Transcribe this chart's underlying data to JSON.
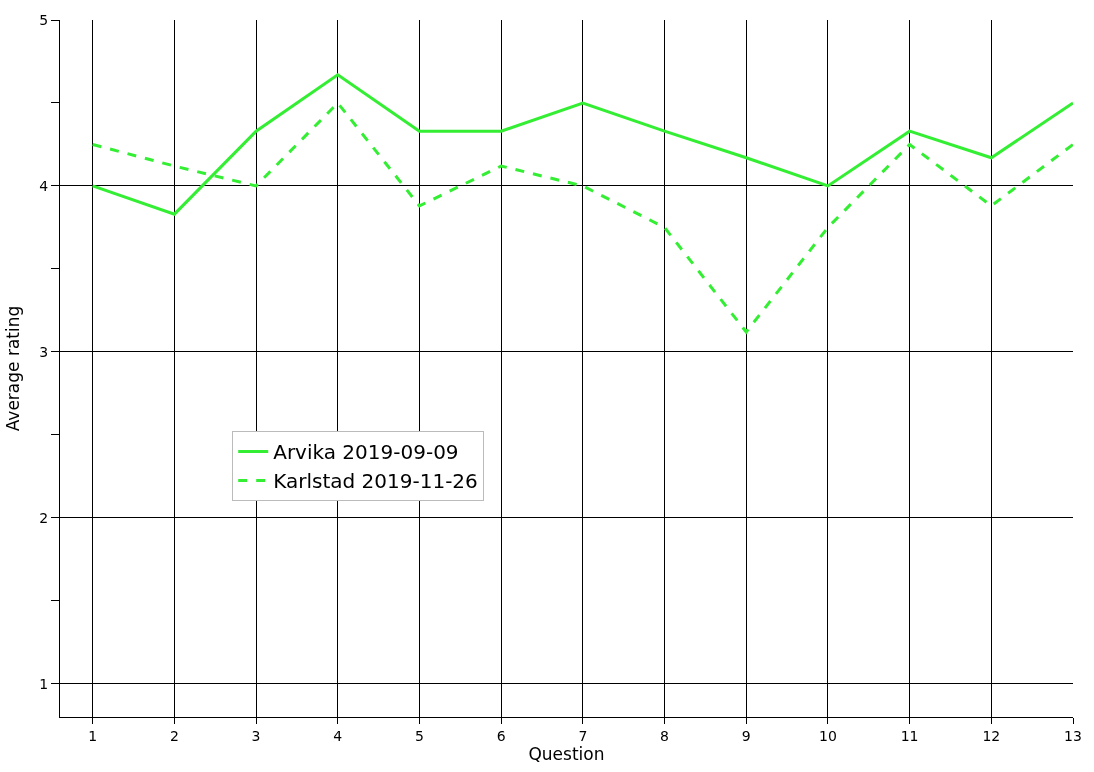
{
  "chart_data": {
    "type": "line",
    "xlabel": "Question",
    "ylabel": "Average rating",
    "x": [
      1,
      2,
      3,
      4,
      5,
      6,
      7,
      8,
      9,
      10,
      11,
      12,
      13
    ],
    "series": [
      {
        "name": "Arvika 2019-09-09",
        "color": "#33ee33",
        "line_style": "solid",
        "values": [
          4.0,
          3.83,
          4.33,
          4.67,
          4.33,
          4.33,
          4.5,
          4.33,
          4.17,
          4.0,
          4.33,
          4.17,
          4.5
        ]
      },
      {
        "name": "Karlstad 2019-11-26",
        "color": "#33ee33",
        "line_style": "dashed",
        "values": [
          4.25,
          4.12,
          4.0,
          4.5,
          3.88,
          4.12,
          4.0,
          3.75,
          3.12,
          3.75,
          4.25,
          3.88,
          4.25
        ]
      }
    ],
    "xlim": [
      0.6,
      13
    ],
    "ylim": [
      0.8,
      5
    ],
    "xticks": [
      1,
      2,
      3,
      4,
      5,
      6,
      7,
      8,
      9,
      10,
      11,
      12,
      13
    ],
    "yticks": [
      1,
      {
        "value": 1.5,
        "label": null
      },
      2,
      {
        "value": 2.5,
        "label": null
      },
      3,
      {
        "value": 3.5,
        "label": null
      },
      4,
      {
        "value": 4.5,
        "label": null
      },
      5
    ],
    "grid": true,
    "legend": "left",
    "marker": "none"
  }
}
